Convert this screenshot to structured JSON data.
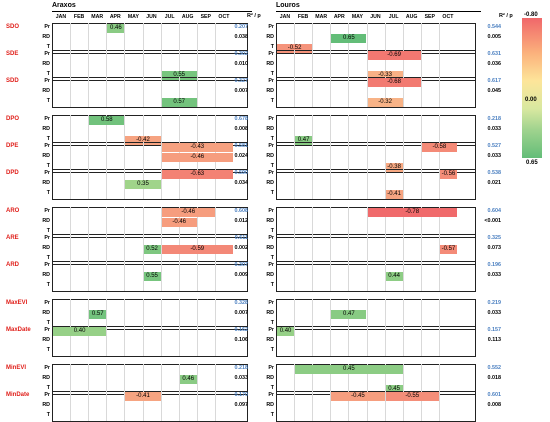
{
  "sites": [
    {
      "name": "Araxos"
    },
    {
      "name": "Louros"
    }
  ],
  "months": [
    "JAN",
    "FEB",
    "MAR",
    "APR",
    "MAY",
    "JUN",
    "JUL",
    "AUG",
    "SEP",
    "OCT"
  ],
  "header_stat": "R² / p",
  "legend": {
    "max": "-0.80",
    "mid": "0.00",
    "min": "0.65"
  },
  "colors": {
    "negative": "#f0676a",
    "neutral": "#fde59a",
    "positive": "#63bd78"
  },
  "groups": [
    {
      "label": "SDO",
      "araxos": {
        "stats": [
          "0.207",
          "0.038"
        ],
        "bars": [
          {
            "row": 0,
            "from": 3,
            "to": 3,
            "value": 0.46,
            "text": "0.46"
          }
        ]
      },
      "louros": {
        "stats": [
          "0.544",
          "0.005"
        ],
        "bars": [
          {
            "row": 1,
            "from": 3,
            "to": 4,
            "value": 0.65,
            "text": "0.65"
          },
          {
            "row": 2,
            "from": 0,
            "to": 1,
            "value": -0.52,
            "text": "-0.52"
          }
        ]
      }
    },
    {
      "label": "SDE",
      "araxos": {
        "stats": [
          "0.302",
          "0.010"
        ],
        "bars": [
          {
            "row": 2,
            "from": 6,
            "to": 7,
            "value": 0.55,
            "text": "0.55"
          }
        ]
      },
      "louros": {
        "stats": [
          "0.631",
          "0.036"
        ],
        "bars": [
          {
            "row": 0,
            "from": 5,
            "to": 7,
            "value": -0.69,
            "text": "-0.69"
          },
          {
            "row": 2,
            "from": 5,
            "to": 6,
            "value": -0.33,
            "text": "-0.33"
          }
        ]
      }
    },
    {
      "label": "SDD",
      "araxos": {
        "stats": [
          "0.327",
          "0.007"
        ],
        "bars": [
          {
            "row": 2,
            "from": 6,
            "to": 7,
            "value": 0.57,
            "text": "0.57"
          }
        ]
      },
      "louros": {
        "stats": [
          "0.617",
          "0.045"
        ],
        "bars": [
          {
            "row": 0,
            "from": 5,
            "to": 7,
            "value": -0.68,
            "text": "-0.68"
          },
          {
            "row": 2,
            "from": 5,
            "to": 6,
            "value": -0.32,
            "text": "-0.32"
          }
        ]
      }
    },
    {
      "label": "DPO",
      "araxos": {
        "stats": [
          "0.678",
          "0.008"
        ],
        "bars": [
          {
            "row": 0,
            "from": 2,
            "to": 3,
            "value": 0.58,
            "text": "0.58"
          },
          {
            "row": 2,
            "from": 4,
            "to": 5,
            "value": -0.42,
            "text": "-0.42"
          }
        ]
      },
      "louros": {
        "stats": [
          "0.218",
          "0.033"
        ],
        "bars": [
          {
            "row": 2,
            "from": 1,
            "to": 1,
            "value": 0.47,
            "text": "0.47"
          }
        ]
      }
    },
    {
      "label": "DPE",
      "araxos": {
        "stats": [
          "0.581",
          "0.024"
        ],
        "bars": [
          {
            "row": 0,
            "from": 6,
            "to": 9,
            "value": -0.43,
            "text": "-0.43"
          },
          {
            "row": 1,
            "from": 6,
            "to": 9,
            "value": -0.46,
            "text": "-0.46"
          }
        ]
      },
      "louros": {
        "stats": [
          "0.527",
          "0.033"
        ],
        "bars": [
          {
            "row": 0,
            "from": 8,
            "to": 9,
            "value": -0.58,
            "text": "-0.58"
          },
          {
            "row": 2,
            "from": 6,
            "to": 6,
            "value": -0.38,
            "text": "-0.38"
          }
        ]
      }
    },
    {
      "label": "DPD",
      "araxos": {
        "stats": [
          "0.590",
          "0.034"
        ],
        "bars": [
          {
            "row": 0,
            "from": 6,
            "to": 9,
            "value": -0.63,
            "text": "-0.63"
          },
          {
            "row": 1,
            "from": 4,
            "to": 5,
            "value": 0.35,
            "text": "0.35"
          }
        ]
      },
      "louros": {
        "stats": [
          "0.538",
          "0.021"
        ],
        "bars": [
          {
            "row": 0,
            "from": 9,
            "to": 9,
            "value": -0.56,
            "text": "-0.56"
          },
          {
            "row": 2,
            "from": 6,
            "to": 6,
            "value": -0.41,
            "text": "-0.41"
          }
        ]
      }
    },
    {
      "label": "ARO",
      "araxos": {
        "stats": [
          "0.608",
          "0.012"
        ],
        "bars": [
          {
            "row": 0,
            "from": 6,
            "to": 8,
            "value": -0.46,
            "text": "-0.46"
          },
          {
            "row": 1,
            "from": 6,
            "to": 7,
            "value": -0.46,
            "text": "-0.46"
          }
        ]
      },
      "louros": {
        "stats": [
          "0.604",
          "<0.001"
        ],
        "bars": [
          {
            "row": 0,
            "from": 5,
            "to": 9,
            "value": -0.78,
            "text": "-0.78"
          }
        ]
      }
    },
    {
      "label": "ARE",
      "araxos": {
        "stats": [
          "0.611",
          "0.002"
        ],
        "bars": [
          {
            "row": 1,
            "from": 5,
            "to": 5,
            "value": 0.52,
            "text": "0.52"
          },
          {
            "row": 1,
            "from": 6,
            "to": 9,
            "value": -0.59,
            "text": "-0.59"
          }
        ]
      },
      "louros": {
        "stats": [
          "0.325",
          "0.073"
        ],
        "bars": [
          {
            "row": 1,
            "from": 9,
            "to": 9,
            "value": -0.57,
            "text": "-0.57"
          }
        ]
      }
    },
    {
      "label": "ARD",
      "araxos": {
        "stats": [
          "0.307",
          "0.009"
        ],
        "bars": [
          {
            "row": 1,
            "from": 5,
            "to": 5,
            "value": 0.55,
            "text": "0.55"
          }
        ]
      },
      "louros": {
        "stats": [
          "0.196",
          "0.033"
        ],
        "bars": [
          {
            "row": 1,
            "from": 6,
            "to": 6,
            "value": 0.44,
            "text": "0.44"
          }
        ]
      }
    },
    {
      "label": "MaxEVI",
      "araxos": {
        "stats": [
          "0.328",
          "0.007"
        ],
        "bars": [
          {
            "row": 1,
            "from": 2,
            "to": 2,
            "value": 0.57,
            "text": "0.57"
          }
        ]
      },
      "louros": {
        "stats": [
          "0.219",
          "0.033"
        ],
        "bars": [
          {
            "row": 1,
            "from": 3,
            "to": 4,
            "value": 0.47,
            "text": "0.47"
          }
        ]
      }
    },
    {
      "label": "MaxDate",
      "araxos": {
        "stats": [
          "0.162",
          "0.106"
        ],
        "bars": [
          {
            "row": 0,
            "from": 0,
            "to": 2,
            "value": 0.4,
            "text": "0.40"
          }
        ]
      },
      "louros": {
        "stats": [
          "0.157",
          "0.113"
        ],
        "bars": [
          {
            "row": 0,
            "from": 0,
            "to": 0,
            "value": 0.4,
            "text": "0.40"
          }
        ]
      }
    },
    {
      "label": "MinEVI",
      "araxos": {
        "stats": [
          "0.218",
          "0.033"
        ],
        "bars": [
          {
            "row": 1,
            "from": 7,
            "to": 7,
            "value": 0.46,
            "text": "0.46"
          }
        ]
      },
      "louros": {
        "stats": [
          "0.552",
          "0.018"
        ],
        "bars": [
          {
            "row": 0,
            "from": 1,
            "to": 6,
            "value": 0.45,
            "text": "0.45"
          },
          {
            "row": 2,
            "from": 6,
            "to": 6,
            "value": 0.45,
            "text": "0.45"
          }
        ]
      }
    },
    {
      "label": "MinDate",
      "araxos": {
        "stats": [
          "0.170",
          "0.097"
        ],
        "bars": [
          {
            "row": 0,
            "from": 4,
            "to": 5,
            "value": -0.41,
            "text": "-0.41"
          }
        ]
      },
      "louros": {
        "stats": [
          "0.601",
          "0.008"
        ],
        "bars": [
          {
            "row": 0,
            "from": 3,
            "to": 5,
            "value": -0.45,
            "text": "-0.45"
          },
          {
            "row": 0,
            "from": 6,
            "to": 8,
            "value": -0.55,
            "text": "-0.55"
          }
        ]
      }
    }
  ],
  "row_labels": [
    "Pr",
    "RD",
    "T"
  ]
}
